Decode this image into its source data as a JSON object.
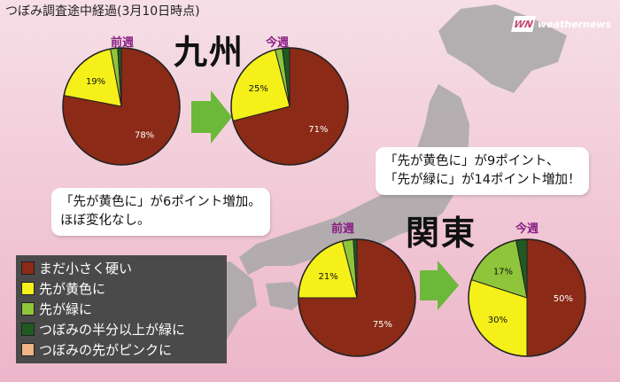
{
  "header": {
    "title": "つぼみ調査途中経過(3月10日時点)",
    "brand_logo": "WN",
    "brand_text": "weathernews"
  },
  "legend": {
    "items": [
      {
        "label": "まだ小さく硬い",
        "color": "#8b2a16"
      },
      {
        "label": "先が黄色に",
        "color": "#f5f01a"
      },
      {
        "label": "先が緑に",
        "color": "#8fc53a"
      },
      {
        "label": "つぼみの半分以上が緑に",
        "color": "#1f5a22"
      },
      {
        "label": "つぼみの先がピンクに",
        "color": "#f0b487"
      }
    ]
  },
  "kyushu": {
    "title": "九州",
    "comment": [
      "「先が黄色に」が6ポイント増加。",
      "ほぼ変化なし。"
    ]
  },
  "kanto": {
    "title": "関東",
    "comment": [
      "「先が黄色に」が9ポイント、",
      "「先が緑に」が14ポイント増加！"
    ]
  },
  "colors": {
    "arrow": "#6cb83a",
    "map": "#a8a8a8"
  },
  "chart_data": [
    {
      "type": "pie",
      "title": "前週",
      "region": "九州",
      "slices": [
        {
          "label": "まだ小さく硬い",
          "value": 78,
          "text": "78%"
        },
        {
          "label": "先が黄色に",
          "value": 19,
          "text": "19%"
        },
        {
          "label": "先が緑に",
          "value": 2,
          "text": ""
        },
        {
          "label": "つぼみの半分以上が緑に",
          "value": 1,
          "text": ""
        }
      ]
    },
    {
      "type": "pie",
      "title": "今週",
      "region": "九州",
      "slices": [
        {
          "label": "まだ小さく硬い",
          "value": 71,
          "text": "71%"
        },
        {
          "label": "先が黄色に",
          "value": 25,
          "text": "25%"
        },
        {
          "label": "先が緑に",
          "value": 2,
          "text": ""
        },
        {
          "label": "つぼみの半分以上が緑に",
          "value": 2,
          "text": ""
        }
      ]
    },
    {
      "type": "pie",
      "title": "前週",
      "region": "関東",
      "slices": [
        {
          "label": "まだ小さく硬い",
          "value": 75,
          "text": "75%"
        },
        {
          "label": "先が黄色に",
          "value": 21,
          "text": "21%"
        },
        {
          "label": "先が緑に",
          "value": 3,
          "text": ""
        },
        {
          "label": "つぼみの半分以上が緑に",
          "value": 1,
          "text": ""
        }
      ]
    },
    {
      "type": "pie",
      "title": "今週",
      "region": "関東",
      "slices": [
        {
          "label": "まだ小さく硬い",
          "value": 50,
          "text": "50%"
        },
        {
          "label": "先が黄色に",
          "value": 30,
          "text": "30%"
        },
        {
          "label": "先が緑に",
          "value": 17,
          "text": "17%"
        },
        {
          "label": "つぼみの半分以上が緑に",
          "value": 3,
          "text": ""
        }
      ]
    }
  ]
}
